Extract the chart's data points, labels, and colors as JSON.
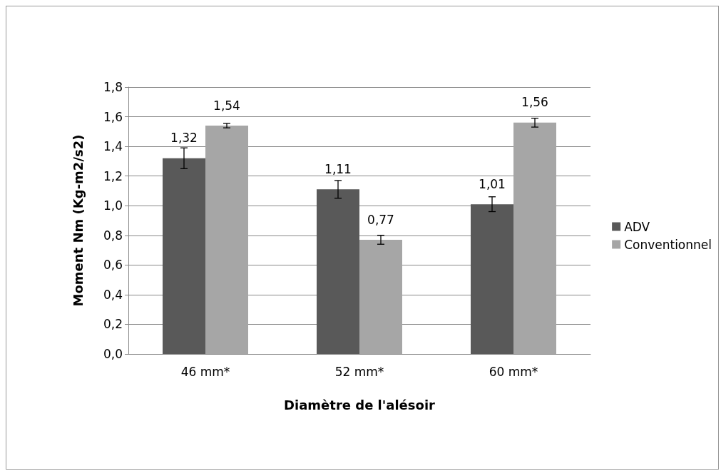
{
  "chart_data": {
    "type": "bar",
    "xlabel": "Diamètre de l'alésoir",
    "ylabel": "Moment Nm (Kg-m2/s2)",
    "categories": [
      "46 mm*",
      "52 mm*",
      "60 mm*"
    ],
    "series": [
      {
        "name": "ADV",
        "color": "#595959",
        "values": [
          1.32,
          1.11,
          1.01
        ],
        "errors": [
          0.07,
          0.06,
          0.05
        ],
        "value_labels": [
          "1,32",
          "1,11",
          "1,01"
        ]
      },
      {
        "name": "Conventionnel",
        "color": "#a6a6a6",
        "values": [
          1.54,
          0.77,
          1.56
        ],
        "errors": [
          0.015,
          0.03,
          0.03
        ],
        "value_labels": [
          "1,54",
          "0,77",
          "1,56"
        ]
      }
    ],
    "ylim": [
      0,
      1.8
    ],
    "yticks": [
      {
        "value": 0,
        "label": "0,0"
      },
      {
        "value": 0.2,
        "label": "0,2"
      },
      {
        "value": 0.4,
        "label": "0,4"
      },
      {
        "value": 0.6,
        "label": "0,6"
      },
      {
        "value": 0.8,
        "label": "0,8"
      },
      {
        "value": 1,
        "label": "1,0"
      },
      {
        "value": 1.2,
        "label": "1,2"
      },
      {
        "value": 1.4,
        "label": "1,4"
      },
      {
        "value": 1.6,
        "label": "1,6"
      },
      {
        "value": 1.8,
        "label": "1,8"
      }
    ],
    "grid": "y",
    "legend": "right"
  }
}
